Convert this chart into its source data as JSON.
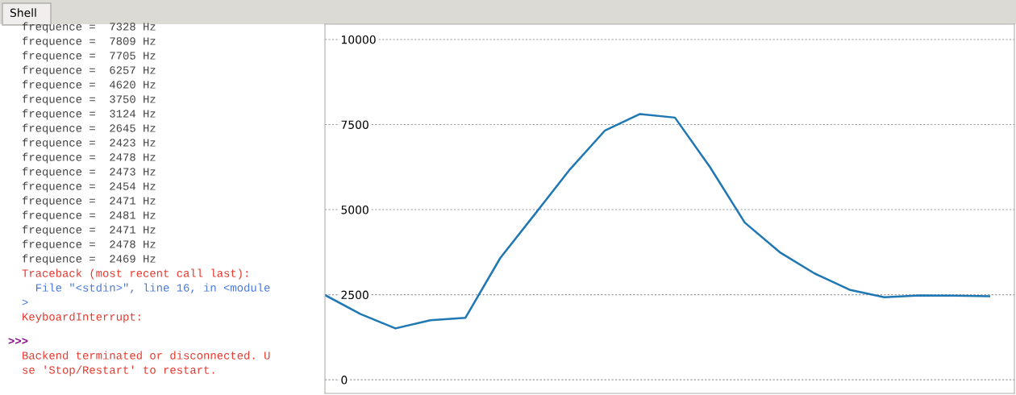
{
  "chart_data": {
    "type": "line",
    "categories": [
      null,
      null,
      null,
      null,
      null,
      null,
      null,
      null,
      null,
      null,
      null,
      null,
      null,
      null,
      null,
      null,
      null,
      null,
      null,
      null
    ],
    "series": [
      {
        "color": "#1f77b4",
        "values": [
          2480,
          1930,
          1510,
          1750,
          1820,
          3580,
          4880,
          6190,
          7328,
          7809,
          7705,
          6257,
          4620,
          3750,
          3124,
          2645,
          2423,
          2478,
          2473,
          2454
        ]
      }
    ],
    "ylim": [
      -400,
      10450
    ],
    "yticks": [
      0,
      2500,
      5000,
      7500,
      10000
    ],
    "grid": "y",
    "tick_labels": "y",
    "marker": "none",
    "line_style": "solid",
    "legend": false,
    "annotations": [
      "Shell",
      "frequence =  7328 Hz",
      "frequence =  7809 Hz",
      "frequence =  7705 Hz",
      "frequence =  6257 Hz",
      "frequence =  4620 Hz",
      "frequence =  3750 Hz",
      "frequence =  3124 Hz",
      "frequence =  2645 Hz",
      "frequence =  2423 Hz",
      "frequence =  2478 Hz",
      "frequence =  2473 Hz",
      "frequence =  2454 Hz",
      "frequence =  2471 Hz",
      "frequence =  2481 Hz",
      "frequence =  2471 Hz",
      "frequence =  2478 Hz",
      "frequence =  2469 Hz",
      "Traceback (most recent call last):",
      "  File \"<stdin>\", line 16, in <module",
      ">",
      "KeyboardInterrupt:",
      ">>>",
      "Backend terminated or disconnected. U",
      "se 'Stop/Restart' to restart."
    ]
  }
}
